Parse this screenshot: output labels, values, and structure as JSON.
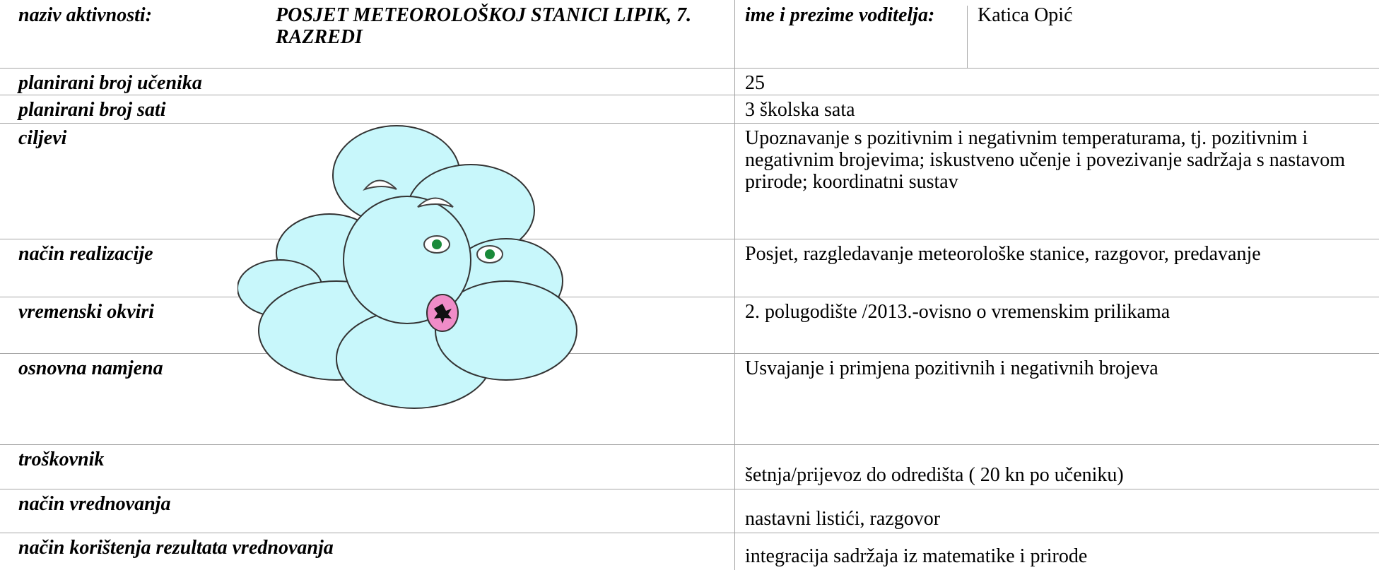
{
  "header": {
    "activity_label": "naziv aktivnosti:",
    "activity_title": "POSJET METEOROLOŠKOJ STANICI LIPIK, 7. RAZREDI",
    "leader_label": "ime i prezime voditelja:",
    "leader_name": "Katica Opić"
  },
  "rows": [
    {
      "label": "planirani broj učenika",
      "value": "25"
    },
    {
      "label": "planirani broj sati",
      "value": "3 školska sata"
    },
    {
      "label": "ciljevi",
      "value": "Upoznavanje s pozitivnim i negativnim temperaturama, tj. pozitivnim i negativnim brojevima; iskustveno učenje i povezivanje sadržaja s nastavom prirode; koordinatni sustav"
    },
    {
      "label": "način realizacije",
      "value": "Posjet, razgledavanje meteorološke stanice, razgovor, predavanje"
    },
    {
      "label": "vremenski okviri",
      "value": "2. polugodište /2013.-ovisno o vremenskim prilikama"
    },
    {
      "label": "osnovna namjena",
      "value": "Usvajanje i primjena pozitivnih i negativnih brojeva"
    },
    {
      "label": "troškovnik",
      "value": "šetnja/prijevoz do odredišta ( 20 kn po učeniku)"
    },
    {
      "label": "način vrednovanja",
      "value": "nastavni listići, razgovor"
    },
    {
      "label": "način korištenja rezultata vrednovanja",
      "value": "integracija sadržaja iz matematike i prirode"
    }
  ]
}
